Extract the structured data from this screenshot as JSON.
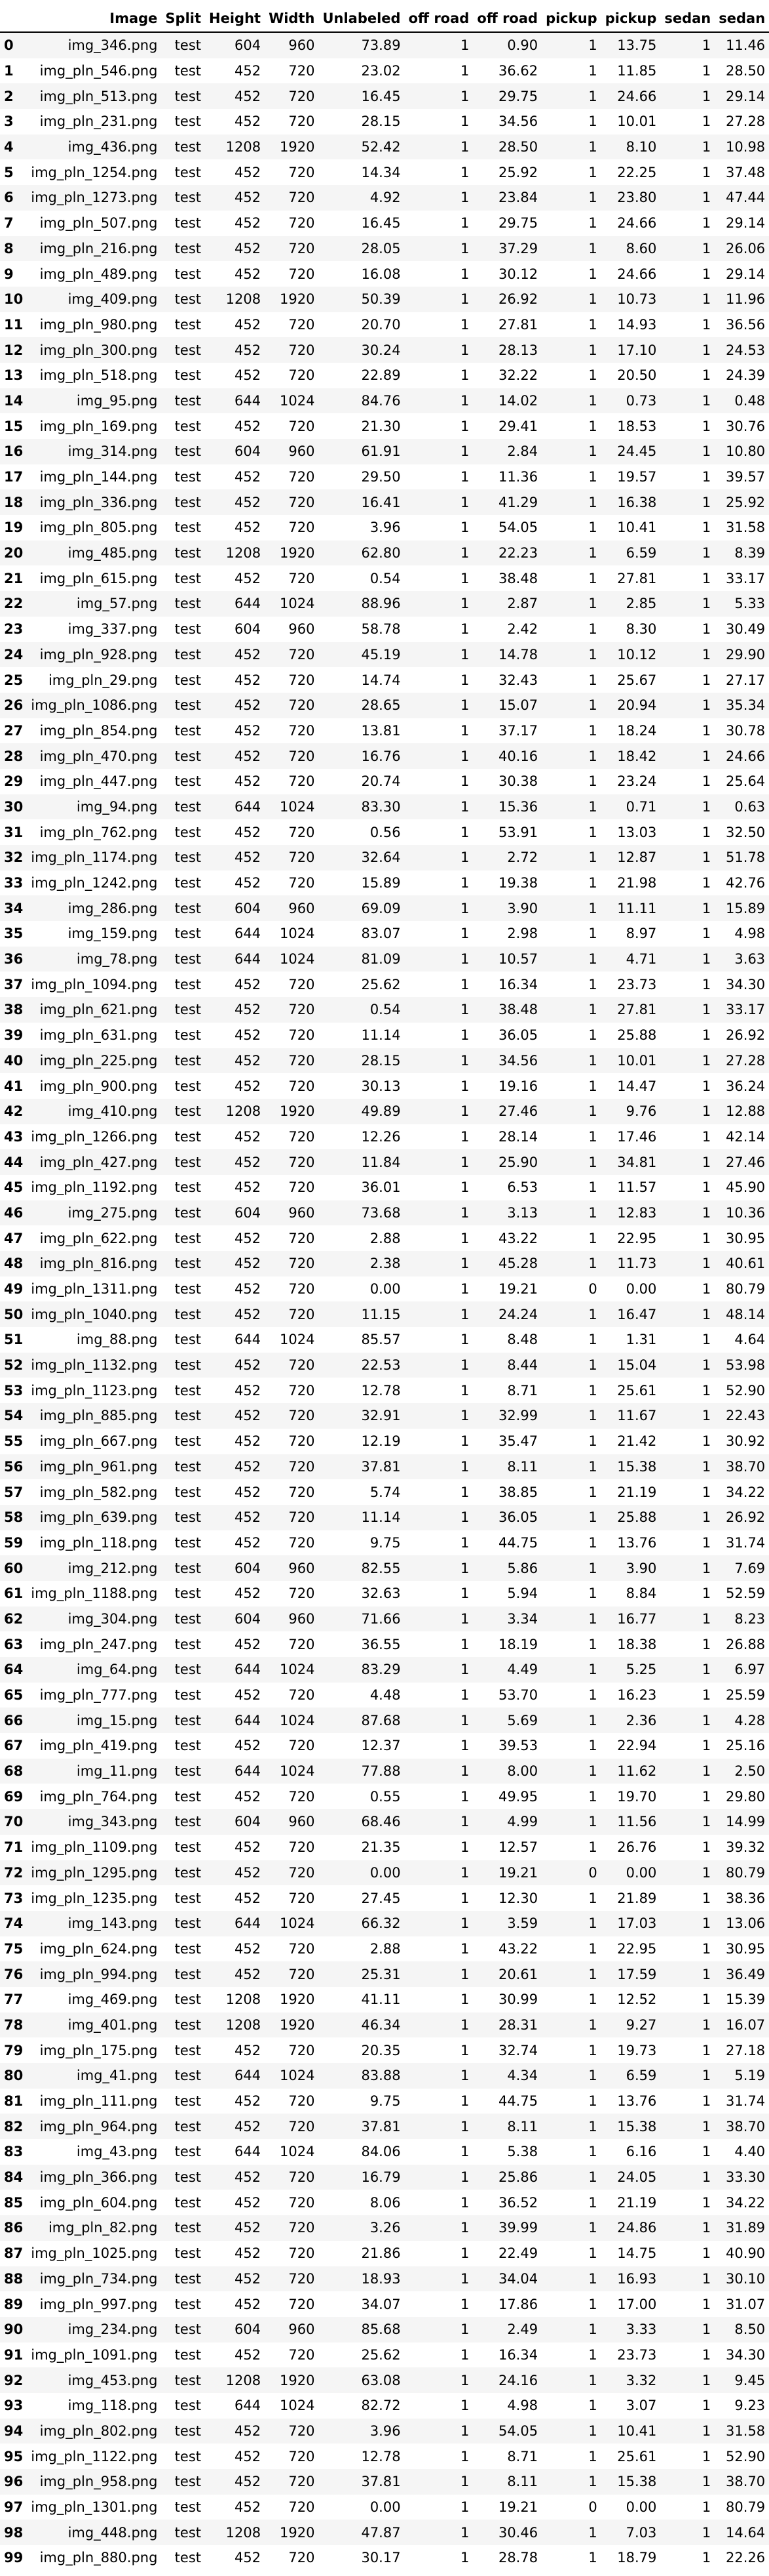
{
  "headers": [
    "",
    "Image",
    "Split",
    "Height",
    "Width",
    "Unlabeled",
    "off road",
    "off road",
    "pickup",
    "pickup",
    "sedan",
    "sedan"
  ],
  "rows": [
    [
      "0",
      "img_346.png",
      "test",
      "604",
      "960",
      "73.89",
      "1",
      "0.90",
      "1",
      "13.75",
      "1",
      "11.46"
    ],
    [
      "1",
      "img_pln_546.png",
      "test",
      "452",
      "720",
      "23.02",
      "1",
      "36.62",
      "1",
      "11.85",
      "1",
      "28.50"
    ],
    [
      "2",
      "img_pln_513.png",
      "test",
      "452",
      "720",
      "16.45",
      "1",
      "29.75",
      "1",
      "24.66",
      "1",
      "29.14"
    ],
    [
      "3",
      "img_pln_231.png",
      "test",
      "452",
      "720",
      "28.15",
      "1",
      "34.56",
      "1",
      "10.01",
      "1",
      "27.28"
    ],
    [
      "4",
      "img_436.png",
      "test",
      "1208",
      "1920",
      "52.42",
      "1",
      "28.50",
      "1",
      "8.10",
      "1",
      "10.98"
    ],
    [
      "5",
      "img_pln_1254.png",
      "test",
      "452",
      "720",
      "14.34",
      "1",
      "25.92",
      "1",
      "22.25",
      "1",
      "37.48"
    ],
    [
      "6",
      "img_pln_1273.png",
      "test",
      "452",
      "720",
      "4.92",
      "1",
      "23.84",
      "1",
      "23.80",
      "1",
      "47.44"
    ],
    [
      "7",
      "img_pln_507.png",
      "test",
      "452",
      "720",
      "16.45",
      "1",
      "29.75",
      "1",
      "24.66",
      "1",
      "29.14"
    ],
    [
      "8",
      "img_pln_216.png",
      "test",
      "452",
      "720",
      "28.05",
      "1",
      "37.29",
      "1",
      "8.60",
      "1",
      "26.06"
    ],
    [
      "9",
      "img_pln_489.png",
      "test",
      "452",
      "720",
      "16.08",
      "1",
      "30.12",
      "1",
      "24.66",
      "1",
      "29.14"
    ],
    [
      "10",
      "img_409.png",
      "test",
      "1208",
      "1920",
      "50.39",
      "1",
      "26.92",
      "1",
      "10.73",
      "1",
      "11.96"
    ],
    [
      "11",
      "img_pln_980.png",
      "test",
      "452",
      "720",
      "20.70",
      "1",
      "27.81",
      "1",
      "14.93",
      "1",
      "36.56"
    ],
    [
      "12",
      "img_pln_300.png",
      "test",
      "452",
      "720",
      "30.24",
      "1",
      "28.13",
      "1",
      "17.10",
      "1",
      "24.53"
    ],
    [
      "13",
      "img_pln_518.png",
      "test",
      "452",
      "720",
      "22.89",
      "1",
      "32.22",
      "1",
      "20.50",
      "1",
      "24.39"
    ],
    [
      "14",
      "img_95.png",
      "test",
      "644",
      "1024",
      "84.76",
      "1",
      "14.02",
      "1",
      "0.73",
      "1",
      "0.48"
    ],
    [
      "15",
      "img_pln_169.png",
      "test",
      "452",
      "720",
      "21.30",
      "1",
      "29.41",
      "1",
      "18.53",
      "1",
      "30.76"
    ],
    [
      "16",
      "img_314.png",
      "test",
      "604",
      "960",
      "61.91",
      "1",
      "2.84",
      "1",
      "24.45",
      "1",
      "10.80"
    ],
    [
      "17",
      "img_pln_144.png",
      "test",
      "452",
      "720",
      "29.50",
      "1",
      "11.36",
      "1",
      "19.57",
      "1",
      "39.57"
    ],
    [
      "18",
      "img_pln_336.png",
      "test",
      "452",
      "720",
      "16.41",
      "1",
      "41.29",
      "1",
      "16.38",
      "1",
      "25.92"
    ],
    [
      "19",
      "img_pln_805.png",
      "test",
      "452",
      "720",
      "3.96",
      "1",
      "54.05",
      "1",
      "10.41",
      "1",
      "31.58"
    ],
    [
      "20",
      "img_485.png",
      "test",
      "1208",
      "1920",
      "62.80",
      "1",
      "22.23",
      "1",
      "6.59",
      "1",
      "8.39"
    ],
    [
      "21",
      "img_pln_615.png",
      "test",
      "452",
      "720",
      "0.54",
      "1",
      "38.48",
      "1",
      "27.81",
      "1",
      "33.17"
    ],
    [
      "22",
      "img_57.png",
      "test",
      "644",
      "1024",
      "88.96",
      "1",
      "2.87",
      "1",
      "2.85",
      "1",
      "5.33"
    ],
    [
      "23",
      "img_337.png",
      "test",
      "604",
      "960",
      "58.78",
      "1",
      "2.42",
      "1",
      "8.30",
      "1",
      "30.49"
    ],
    [
      "24",
      "img_pln_928.png",
      "test",
      "452",
      "720",
      "45.19",
      "1",
      "14.78",
      "1",
      "10.12",
      "1",
      "29.90"
    ],
    [
      "25",
      "img_pln_29.png",
      "test",
      "452",
      "720",
      "14.74",
      "1",
      "32.43",
      "1",
      "25.67",
      "1",
      "27.17"
    ],
    [
      "26",
      "img_pln_1086.png",
      "test",
      "452",
      "720",
      "28.65",
      "1",
      "15.07",
      "1",
      "20.94",
      "1",
      "35.34"
    ],
    [
      "27",
      "img_pln_854.png",
      "test",
      "452",
      "720",
      "13.81",
      "1",
      "37.17",
      "1",
      "18.24",
      "1",
      "30.78"
    ],
    [
      "28",
      "img_pln_470.png",
      "test",
      "452",
      "720",
      "16.76",
      "1",
      "40.16",
      "1",
      "18.42",
      "1",
      "24.66"
    ],
    [
      "29",
      "img_pln_447.png",
      "test",
      "452",
      "720",
      "20.74",
      "1",
      "30.38",
      "1",
      "23.24",
      "1",
      "25.64"
    ],
    [
      "30",
      "img_94.png",
      "test",
      "644",
      "1024",
      "83.30",
      "1",
      "15.36",
      "1",
      "0.71",
      "1",
      "0.63"
    ],
    [
      "31",
      "img_pln_762.png",
      "test",
      "452",
      "720",
      "0.56",
      "1",
      "53.91",
      "1",
      "13.03",
      "1",
      "32.50"
    ],
    [
      "32",
      "img_pln_1174.png",
      "test",
      "452",
      "720",
      "32.64",
      "1",
      "2.72",
      "1",
      "12.87",
      "1",
      "51.78"
    ],
    [
      "33",
      "img_pln_1242.png",
      "test",
      "452",
      "720",
      "15.89",
      "1",
      "19.38",
      "1",
      "21.98",
      "1",
      "42.76"
    ],
    [
      "34",
      "img_286.png",
      "test",
      "604",
      "960",
      "69.09",
      "1",
      "3.90",
      "1",
      "11.11",
      "1",
      "15.89"
    ],
    [
      "35",
      "img_159.png",
      "test",
      "644",
      "1024",
      "83.07",
      "1",
      "2.98",
      "1",
      "8.97",
      "1",
      "4.98"
    ],
    [
      "36",
      "img_78.png",
      "test",
      "644",
      "1024",
      "81.09",
      "1",
      "10.57",
      "1",
      "4.71",
      "1",
      "3.63"
    ],
    [
      "37",
      "img_pln_1094.png",
      "test",
      "452",
      "720",
      "25.62",
      "1",
      "16.34",
      "1",
      "23.73",
      "1",
      "34.30"
    ],
    [
      "38",
      "img_pln_621.png",
      "test",
      "452",
      "720",
      "0.54",
      "1",
      "38.48",
      "1",
      "27.81",
      "1",
      "33.17"
    ],
    [
      "39",
      "img_pln_631.png",
      "test",
      "452",
      "720",
      "11.14",
      "1",
      "36.05",
      "1",
      "25.88",
      "1",
      "26.92"
    ],
    [
      "40",
      "img_pln_225.png",
      "test",
      "452",
      "720",
      "28.15",
      "1",
      "34.56",
      "1",
      "10.01",
      "1",
      "27.28"
    ],
    [
      "41",
      "img_pln_900.png",
      "test",
      "452",
      "720",
      "30.13",
      "1",
      "19.16",
      "1",
      "14.47",
      "1",
      "36.24"
    ],
    [
      "42",
      "img_410.png",
      "test",
      "1208",
      "1920",
      "49.89",
      "1",
      "27.46",
      "1",
      "9.76",
      "1",
      "12.88"
    ],
    [
      "43",
      "img_pln_1266.png",
      "test",
      "452",
      "720",
      "12.26",
      "1",
      "28.14",
      "1",
      "17.46",
      "1",
      "42.14"
    ],
    [
      "44",
      "img_pln_427.png",
      "test",
      "452",
      "720",
      "11.84",
      "1",
      "25.90",
      "1",
      "34.81",
      "1",
      "27.46"
    ],
    [
      "45",
      "img_pln_1192.png",
      "test",
      "452",
      "720",
      "36.01",
      "1",
      "6.53",
      "1",
      "11.57",
      "1",
      "45.90"
    ],
    [
      "46",
      "img_275.png",
      "test",
      "604",
      "960",
      "73.68",
      "1",
      "3.13",
      "1",
      "12.83",
      "1",
      "10.36"
    ],
    [
      "47",
      "img_pln_622.png",
      "test",
      "452",
      "720",
      "2.88",
      "1",
      "43.22",
      "1",
      "22.95",
      "1",
      "30.95"
    ],
    [
      "48",
      "img_pln_816.png",
      "test",
      "452",
      "720",
      "2.38",
      "1",
      "45.28",
      "1",
      "11.73",
      "1",
      "40.61"
    ],
    [
      "49",
      "img_pln_1311.png",
      "test",
      "452",
      "720",
      "0.00",
      "1",
      "19.21",
      "0",
      "0.00",
      "1",
      "80.79"
    ],
    [
      "50",
      "img_pln_1040.png",
      "test",
      "452",
      "720",
      "11.15",
      "1",
      "24.24",
      "1",
      "16.47",
      "1",
      "48.14"
    ],
    [
      "51",
      "img_88.png",
      "test",
      "644",
      "1024",
      "85.57",
      "1",
      "8.48",
      "1",
      "1.31",
      "1",
      "4.64"
    ],
    [
      "52",
      "img_pln_1132.png",
      "test",
      "452",
      "720",
      "22.53",
      "1",
      "8.44",
      "1",
      "15.04",
      "1",
      "53.98"
    ],
    [
      "53",
      "img_pln_1123.png",
      "test",
      "452",
      "720",
      "12.78",
      "1",
      "8.71",
      "1",
      "25.61",
      "1",
      "52.90"
    ],
    [
      "54",
      "img_pln_885.png",
      "test",
      "452",
      "720",
      "32.91",
      "1",
      "32.99",
      "1",
      "11.67",
      "1",
      "22.43"
    ],
    [
      "55",
      "img_pln_667.png",
      "test",
      "452",
      "720",
      "12.19",
      "1",
      "35.47",
      "1",
      "21.42",
      "1",
      "30.92"
    ],
    [
      "56",
      "img_pln_961.png",
      "test",
      "452",
      "720",
      "37.81",
      "1",
      "8.11",
      "1",
      "15.38",
      "1",
      "38.70"
    ],
    [
      "57",
      "img_pln_582.png",
      "test",
      "452",
      "720",
      "5.74",
      "1",
      "38.85",
      "1",
      "21.19",
      "1",
      "34.22"
    ],
    [
      "58",
      "img_pln_639.png",
      "test",
      "452",
      "720",
      "11.14",
      "1",
      "36.05",
      "1",
      "25.88",
      "1",
      "26.92"
    ],
    [
      "59",
      "img_pln_118.png",
      "test",
      "452",
      "720",
      "9.75",
      "1",
      "44.75",
      "1",
      "13.76",
      "1",
      "31.74"
    ],
    [
      "60",
      "img_212.png",
      "test",
      "604",
      "960",
      "82.55",
      "1",
      "5.86",
      "1",
      "3.90",
      "1",
      "7.69"
    ],
    [
      "61",
      "img_pln_1188.png",
      "test",
      "452",
      "720",
      "32.63",
      "1",
      "5.94",
      "1",
      "8.84",
      "1",
      "52.59"
    ],
    [
      "62",
      "img_304.png",
      "test",
      "604",
      "960",
      "71.66",
      "1",
      "3.34",
      "1",
      "16.77",
      "1",
      "8.23"
    ],
    [
      "63",
      "img_pln_247.png",
      "test",
      "452",
      "720",
      "36.55",
      "1",
      "18.19",
      "1",
      "18.38",
      "1",
      "26.88"
    ],
    [
      "64",
      "img_64.png",
      "test",
      "644",
      "1024",
      "83.29",
      "1",
      "4.49",
      "1",
      "5.25",
      "1",
      "6.97"
    ],
    [
      "65",
      "img_pln_777.png",
      "test",
      "452",
      "720",
      "4.48",
      "1",
      "53.70",
      "1",
      "16.23",
      "1",
      "25.59"
    ],
    [
      "66",
      "img_15.png",
      "test",
      "644",
      "1024",
      "87.68",
      "1",
      "5.69",
      "1",
      "2.36",
      "1",
      "4.28"
    ],
    [
      "67",
      "img_pln_419.png",
      "test",
      "452",
      "720",
      "12.37",
      "1",
      "39.53",
      "1",
      "22.94",
      "1",
      "25.16"
    ],
    [
      "68",
      "img_11.png",
      "test",
      "644",
      "1024",
      "77.88",
      "1",
      "8.00",
      "1",
      "11.62",
      "1",
      "2.50"
    ],
    [
      "69",
      "img_pln_764.png",
      "test",
      "452",
      "720",
      "0.55",
      "1",
      "49.95",
      "1",
      "19.70",
      "1",
      "29.80"
    ],
    [
      "70",
      "img_343.png",
      "test",
      "604",
      "960",
      "68.46",
      "1",
      "4.99",
      "1",
      "11.56",
      "1",
      "14.99"
    ],
    [
      "71",
      "img_pln_1109.png",
      "test",
      "452",
      "720",
      "21.35",
      "1",
      "12.57",
      "1",
      "26.76",
      "1",
      "39.32"
    ],
    [
      "72",
      "img_pln_1295.png",
      "test",
      "452",
      "720",
      "0.00",
      "1",
      "19.21",
      "0",
      "0.00",
      "1",
      "80.79"
    ],
    [
      "73",
      "img_pln_1235.png",
      "test",
      "452",
      "720",
      "27.45",
      "1",
      "12.30",
      "1",
      "21.89",
      "1",
      "38.36"
    ],
    [
      "74",
      "img_143.png",
      "test",
      "644",
      "1024",
      "66.32",
      "1",
      "3.59",
      "1",
      "17.03",
      "1",
      "13.06"
    ],
    [
      "75",
      "img_pln_624.png",
      "test",
      "452",
      "720",
      "2.88",
      "1",
      "43.22",
      "1",
      "22.95",
      "1",
      "30.95"
    ],
    [
      "76",
      "img_pln_994.png",
      "test",
      "452",
      "720",
      "25.31",
      "1",
      "20.61",
      "1",
      "17.59",
      "1",
      "36.49"
    ],
    [
      "77",
      "img_469.png",
      "test",
      "1208",
      "1920",
      "41.11",
      "1",
      "30.99",
      "1",
      "12.52",
      "1",
      "15.39"
    ],
    [
      "78",
      "img_401.png",
      "test",
      "1208",
      "1920",
      "46.34",
      "1",
      "28.31",
      "1",
      "9.27",
      "1",
      "16.07"
    ],
    [
      "79",
      "img_pln_175.png",
      "test",
      "452",
      "720",
      "20.35",
      "1",
      "32.74",
      "1",
      "19.73",
      "1",
      "27.18"
    ],
    [
      "80",
      "img_41.png",
      "test",
      "644",
      "1024",
      "83.88",
      "1",
      "4.34",
      "1",
      "6.59",
      "1",
      "5.19"
    ],
    [
      "81",
      "img_pln_111.png",
      "test",
      "452",
      "720",
      "9.75",
      "1",
      "44.75",
      "1",
      "13.76",
      "1",
      "31.74"
    ],
    [
      "82",
      "img_pln_964.png",
      "test",
      "452",
      "720",
      "37.81",
      "1",
      "8.11",
      "1",
      "15.38",
      "1",
      "38.70"
    ],
    [
      "83",
      "img_43.png",
      "test",
      "644",
      "1024",
      "84.06",
      "1",
      "5.38",
      "1",
      "6.16",
      "1",
      "4.40"
    ],
    [
      "84",
      "img_pln_366.png",
      "test",
      "452",
      "720",
      "16.79",
      "1",
      "25.86",
      "1",
      "24.05",
      "1",
      "33.30"
    ],
    [
      "85",
      "img_pln_604.png",
      "test",
      "452",
      "720",
      "8.06",
      "1",
      "36.52",
      "1",
      "21.19",
      "1",
      "34.22"
    ],
    [
      "86",
      "img_pln_82.png",
      "test",
      "452",
      "720",
      "3.26",
      "1",
      "39.99",
      "1",
      "24.86",
      "1",
      "31.89"
    ],
    [
      "87",
      "img_pln_1025.png",
      "test",
      "452",
      "720",
      "21.86",
      "1",
      "22.49",
      "1",
      "14.75",
      "1",
      "40.90"
    ],
    [
      "88",
      "img_pln_734.png",
      "test",
      "452",
      "720",
      "18.93",
      "1",
      "34.04",
      "1",
      "16.93",
      "1",
      "30.10"
    ],
    [
      "89",
      "img_pln_997.png",
      "test",
      "452",
      "720",
      "34.07",
      "1",
      "17.86",
      "1",
      "17.00",
      "1",
      "31.07"
    ],
    [
      "90",
      "img_234.png",
      "test",
      "604",
      "960",
      "85.68",
      "1",
      "2.49",
      "1",
      "3.33",
      "1",
      "8.50"
    ],
    [
      "91",
      "img_pln_1091.png",
      "test",
      "452",
      "720",
      "25.62",
      "1",
      "16.34",
      "1",
      "23.73",
      "1",
      "34.30"
    ],
    [
      "92",
      "img_453.png",
      "test",
      "1208",
      "1920",
      "63.08",
      "1",
      "24.16",
      "1",
      "3.32",
      "1",
      "9.45"
    ],
    [
      "93",
      "img_118.png",
      "test",
      "644",
      "1024",
      "82.72",
      "1",
      "4.98",
      "1",
      "3.07",
      "1",
      "9.23"
    ],
    [
      "94",
      "img_pln_802.png",
      "test",
      "452",
      "720",
      "3.96",
      "1",
      "54.05",
      "1",
      "10.41",
      "1",
      "31.58"
    ],
    [
      "95",
      "img_pln_1122.png",
      "test",
      "452",
      "720",
      "12.78",
      "1",
      "8.71",
      "1",
      "25.61",
      "1",
      "52.90"
    ],
    [
      "96",
      "img_pln_958.png",
      "test",
      "452",
      "720",
      "37.81",
      "1",
      "8.11",
      "1",
      "15.38",
      "1",
      "38.70"
    ],
    [
      "97",
      "img_pln_1301.png",
      "test",
      "452",
      "720",
      "0.00",
      "1",
      "19.21",
      "0",
      "0.00",
      "1",
      "80.79"
    ],
    [
      "98",
      "img_448.png",
      "test",
      "1208",
      "1920",
      "47.87",
      "1",
      "30.46",
      "1",
      "7.03",
      "1",
      "14.64"
    ],
    [
      "99",
      "img_pln_880.png",
      "test",
      "452",
      "720",
      "30.17",
      "1",
      "28.78",
      "1",
      "18.79",
      "1",
      "22.26"
    ]
  ]
}
